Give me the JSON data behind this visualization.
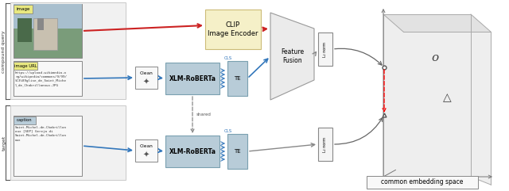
{
  "bg_color": "#ffffff",
  "compound_query_label": "compound query",
  "target_label": "target",
  "image_label": "image",
  "image_url_label": "image URL",
  "caption_label": "caption",
  "clip_label": "CLIP\nImage Encoder",
  "xlm_label": "XLM-RoBERTa",
  "te_label": "TE",
  "clean_label": "Clean",
  "feature_fusion_label": "Feature\nFusion",
  "l2_norm_label": "L₂ norm",
  "common_embedding_label": "common embedding space",
  "shared_label": "shared",
  "cls_label": "CLS",
  "image_url_text": "https://upload.wikimedia.o\nrg/wikipedia/commons/9/99/\n%C3%89glise_de_Saint_Miche\nl_de_Chabrillanoux.JPG",
  "caption_text": "Saint-Michel-de-Chabrillon\noux [SEP] Gereja di\nSaint-Michel-de-Chabrillon\noux",
  "clip_box_color": "#f5f0c8",
  "xlm_box_color": "#b8ccd8",
  "te_box_color": "#b8ccd8",
  "arrow_blue": "#3377bb",
  "arrow_red": "#cc2222",
  "arrow_gray": "#888888"
}
